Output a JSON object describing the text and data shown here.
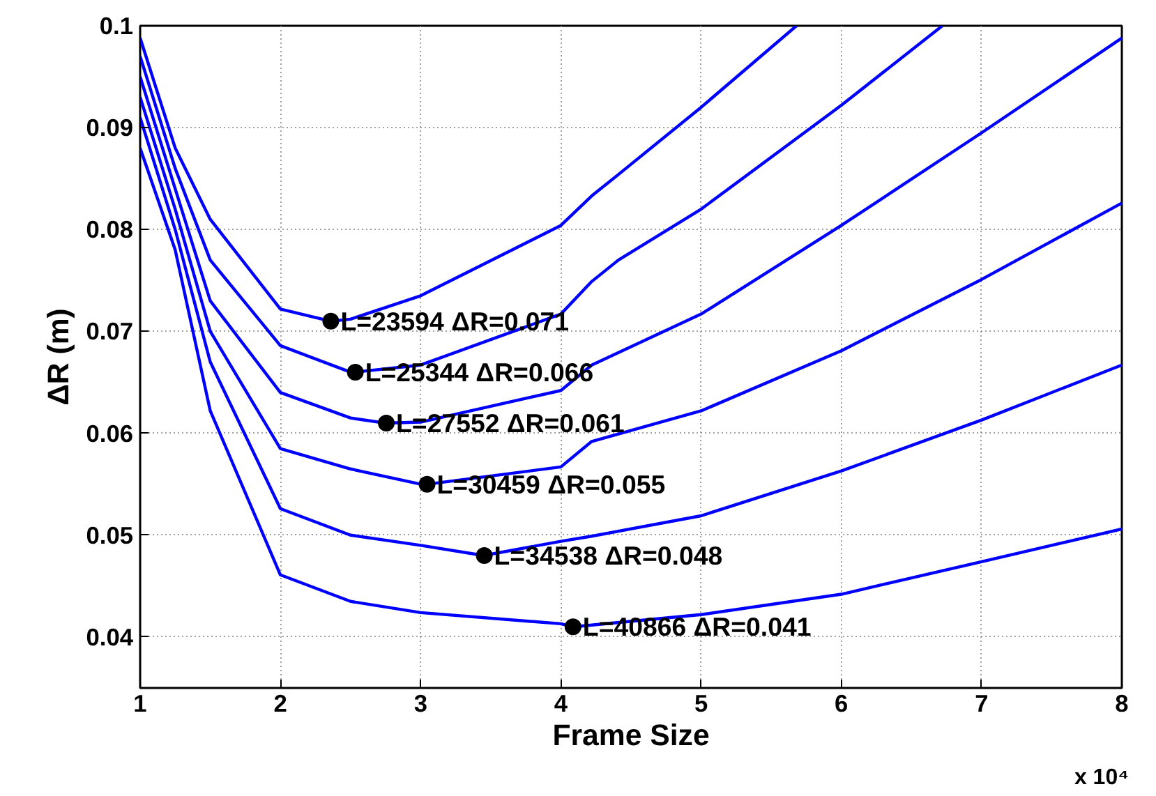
{
  "chart_data": {
    "type": "line",
    "xlabel": "Frame Size",
    "ylabel": "ΔR (m)",
    "xlim": [
      1,
      8
    ],
    "ylim": [
      0.035,
      0.1
    ],
    "xticks": [
      1,
      2,
      3,
      4,
      5,
      6,
      7,
      8
    ],
    "yticks": [
      0.04,
      0.05,
      0.06,
      0.07,
      0.08,
      0.09,
      0.1
    ],
    "grid": true,
    "line_style": "solid",
    "marker": "none",
    "series": [
      {
        "color": "#0000ff",
        "x": [
          1,
          1.25,
          1.5,
          2,
          2.36,
          2.5,
          3,
          4,
          4.22,
          4.41,
          5,
          5.68
        ],
        "values": [
          0.0988,
          0.088,
          0.081,
          0.0722,
          0.071,
          0.0712,
          0.0735,
          0.0804,
          0.0833,
          0.0854,
          0.092,
          0.1
        ]
      },
      {
        "color": "#0000ff",
        "x": [
          1,
          1.25,
          1.5,
          2,
          2.5,
          2.53,
          3,
          4,
          4.22,
          4.41,
          5,
          6,
          6.72
        ],
        "values": [
          0.097,
          0.086,
          0.077,
          0.0686,
          0.066,
          0.066,
          0.0667,
          0.0717,
          0.0749,
          0.077,
          0.082,
          0.0922,
          0.1
        ]
      },
      {
        "color": "#0000ff",
        "x": [
          1,
          1.25,
          1.5,
          2,
          2.5,
          2.75,
          3,
          4,
          4.22,
          5,
          6,
          7,
          8
        ],
        "values": [
          0.095,
          0.084,
          0.073,
          0.064,
          0.0615,
          0.061,
          0.0611,
          0.0642,
          0.0667,
          0.0717,
          0.0804,
          0.0895,
          0.0988
        ]
      },
      {
        "color": "#0000ff",
        "x": [
          1,
          1.25,
          1.5,
          2,
          2.5,
          3,
          3.05,
          4,
          4.22,
          5,
          6,
          7,
          8
        ],
        "values": [
          0.093,
          0.082,
          0.07,
          0.0585,
          0.0565,
          0.055,
          0.055,
          0.0567,
          0.0592,
          0.0622,
          0.0681,
          0.0751,
          0.0826
        ]
      },
      {
        "color": "#0000ff",
        "x": [
          1,
          1.25,
          1.5,
          2,
          2.5,
          3,
          3.45,
          4,
          4.22,
          5,
          6,
          7,
          8
        ],
        "values": [
          0.091,
          0.08,
          0.067,
          0.0526,
          0.05,
          0.049,
          0.048,
          0.0494,
          0.0499,
          0.0519,
          0.0563,
          0.0613,
          0.0667
        ]
      },
      {
        "color": "#0000ff",
        "x": [
          1,
          1.25,
          1.5,
          2,
          2.5,
          3,
          4,
          4.09,
          5,
          6,
          7,
          8
        ],
        "values": [
          0.088,
          0.078,
          0.0622,
          0.0461,
          0.0435,
          0.0424,
          0.0413,
          0.041,
          0.0422,
          0.0442,
          0.0474,
          0.0506
        ]
      },
      {
        "type": "scatter",
        "marker": "circle",
        "color": "#000000",
        "x": [
          2.3594,
          2.5344,
          2.7552,
          3.0459,
          3.4538,
          4.0866
        ],
        "values": [
          0.071,
          0.066,
          0.061,
          0.055,
          0.048,
          0.041
        ]
      }
    ],
    "annotations": [
      {
        "text": "L=23594 ΔR=0.071",
        "x": 2.3594,
        "y": 0.071
      },
      {
        "text": "L=25344 ΔR=0.066",
        "x": 2.5344,
        "y": 0.066
      },
      {
        "text": "L=27552 ΔR=0.061",
        "x": 2.7552,
        "y": 0.061
      },
      {
        "text": "L=30459 ΔR=0.055",
        "x": 3.0459,
        "y": 0.055
      },
      {
        "text": "L=34538 ΔR=0.048",
        "x": 3.4538,
        "y": 0.048
      },
      {
        "text": "L=40866 ΔR=0.041",
        "x": 4.0866,
        "y": 0.041
      },
      "x 10⁴"
    ]
  }
}
